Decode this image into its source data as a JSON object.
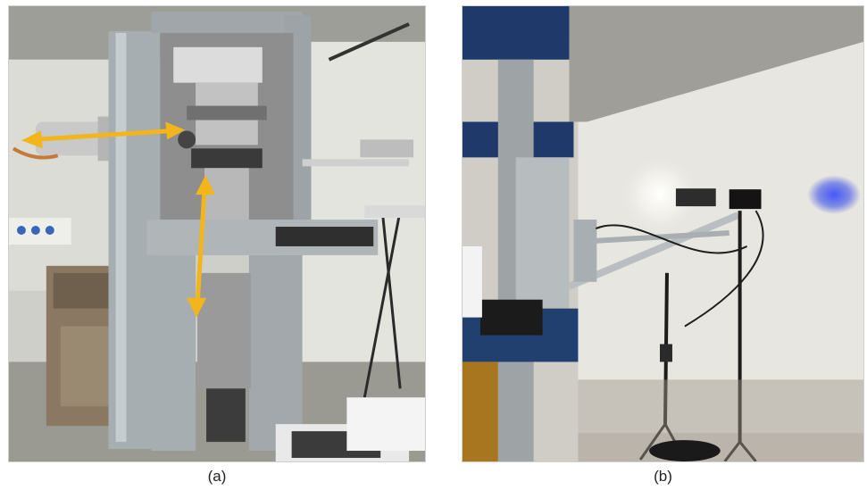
{
  "figure": {
    "panels": [
      {
        "id": "a",
        "caption": "(a)",
        "subject": "material-testing-machine-with-arrows"
      },
      {
        "id": "b",
        "caption": "(b)",
        "subject": "camera-and-light-rig-on-tripods"
      }
    ],
    "colors": {
      "arrow": "#f2b51b",
      "wall": "#e7e6e0",
      "machine_frame": "#a7aeb2",
      "blue_light": "#3f52e6"
    }
  }
}
